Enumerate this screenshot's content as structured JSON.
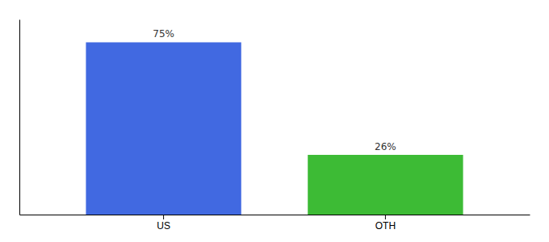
{
  "chart_data": {
    "type": "bar",
    "categories": [
      "US",
      "OTH"
    ],
    "values": [
      75,
      26
    ],
    "value_labels": [
      "75%",
      "26%"
    ],
    "colors": [
      "#4169e1",
      "#3dbb35"
    ],
    "ylim": [
      0,
      85
    ],
    "data_labels": true,
    "tick_labels": "x"
  }
}
